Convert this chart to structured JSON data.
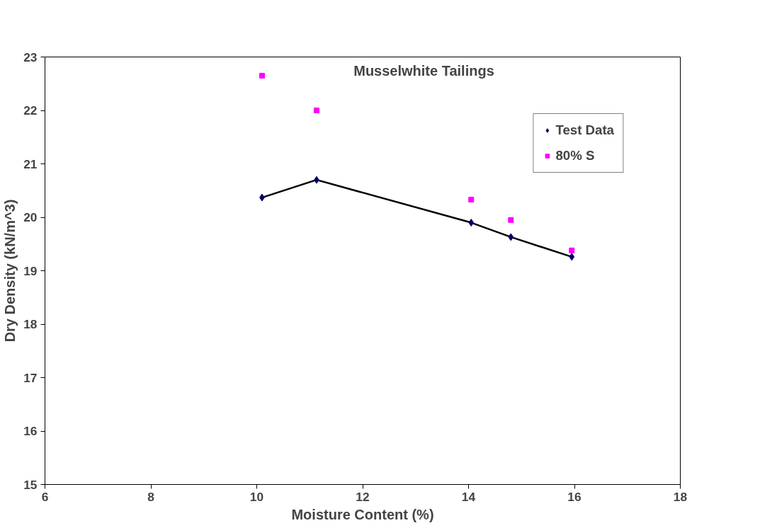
{
  "chart_data": {
    "type": "line",
    "title": "Musselwhite Tailings",
    "xlabel": "Moisture Content (%)",
    "ylabel": "Dry Density (kN/m^3)",
    "xlim": [
      6,
      18
    ],
    "xticks": [
      6,
      8,
      10,
      12,
      14,
      16,
      18
    ],
    "ylim": [
      15,
      23
    ],
    "yticks": [
      15,
      16,
      17,
      18,
      19,
      20,
      21,
      22,
      23
    ],
    "grid": false,
    "legend": "top right",
    "series": [
      {
        "name": "Test Data",
        "marker": "diamond",
        "color": "#000066",
        "x": [
          10.1,
          11.13,
          14.05,
          14.8,
          15.95
        ],
        "values": [
          20.37,
          20.7,
          19.9,
          19.63,
          19.26
        ]
      },
      {
        "name": "80% S",
        "type": "scatter",
        "marker": "square",
        "color": "#ff00ff",
        "x": [
          10.1,
          11.13,
          14.05,
          14.8,
          15.95
        ],
        "values": [
          22.65,
          22.0,
          20.33,
          19.95,
          19.38
        ]
      }
    ]
  }
}
